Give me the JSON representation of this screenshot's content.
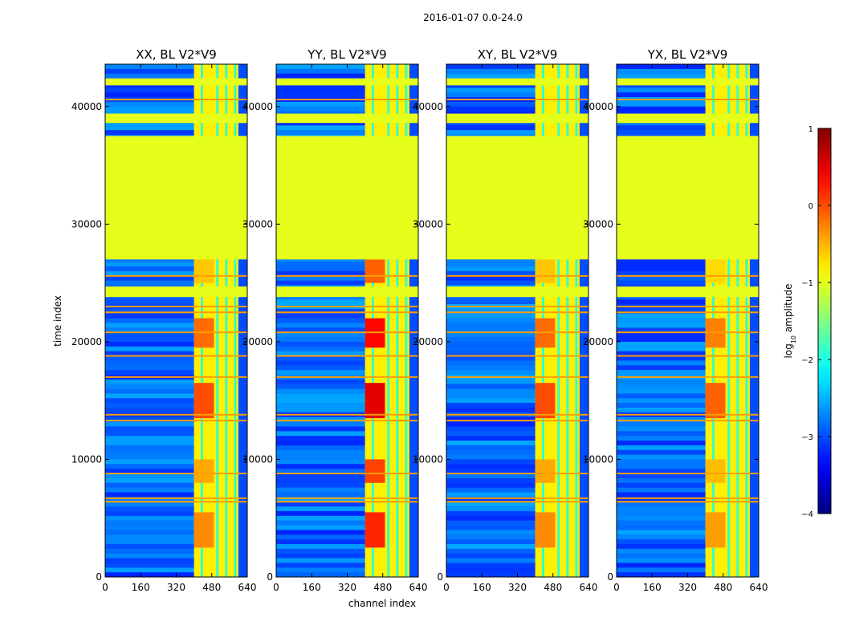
{
  "chart_data": {
    "type": "heatmap",
    "title": "2016-01-07 0.0-24.0",
    "xlabel": "channel index",
    "ylabel": "time index",
    "xlim": [
      0,
      640
    ],
    "ylim": [
      0,
      43600
    ],
    "xticks": [
      0,
      160,
      320,
      480,
      640
    ],
    "yticks": [
      0,
      10000,
      20000,
      30000,
      40000
    ],
    "colorbar": {
      "label": "log10 amplitude",
      "label_base": "log",
      "label_sub": "10",
      "label_rest": " amplitude",
      "range": [
        -4,
        1
      ],
      "ticks": [
        1,
        0,
        -1,
        -2,
        -3,
        -4
      ],
      "tick_labels": [
        "1",
        "0",
        "−1",
        "−2",
        "−3",
        "−4"
      ],
      "colormap": "jet"
    },
    "panels": [
      {
        "title": "XX, BL V2*V9",
        "center_hot_value": 0.0
      },
      {
        "title": "YY, BL V2*V9",
        "center_hot_value": 0.5
      },
      {
        "title": "XY, BL V2*V9",
        "center_hot_value": 0.0
      },
      {
        "title": "YX, BL V2*V9",
        "center_hot_value": -0.1
      }
    ],
    "flagged_time_bands": [
      [
        27000,
        37500
      ],
      [
        23800,
        24700
      ],
      [
        38600,
        39400
      ],
      [
        41800,
        42400
      ]
    ],
    "flagged_value": -1.0,
    "band_rows": {
      "background_value": -3.0,
      "bright_channel_range": [
        400,
        600
      ],
      "bright_value": -0.8,
      "hot_channel_range": [
        400,
        490
      ],
      "hot_time_ranges": [
        [
          13500,
          16500
        ],
        [
          19500,
          22000
        ],
        [
          2500,
          5500
        ],
        [
          8000,
          10000
        ],
        [
          25000,
          27000
        ]
      ],
      "rfi_time_lines": [
        6400,
        6700,
        8800,
        13300,
        13800,
        17000,
        18800,
        20800,
        22500,
        23000,
        25600,
        40600
      ]
    }
  }
}
